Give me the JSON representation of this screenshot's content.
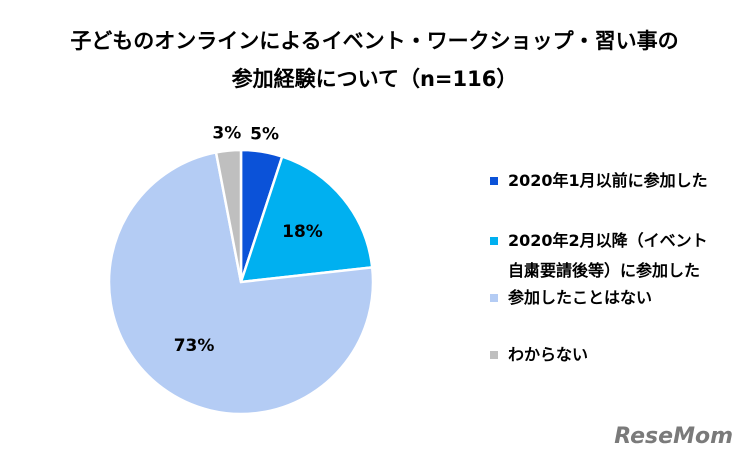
{
  "chart_data": {
    "type": "pie",
    "title": "子どものオンラインによるイベント・ワークショップ・習い事の\n参加経験について（n=116）",
    "series": [
      {
        "name": "2020年1月以前に参加した",
        "color": "#0b52d8",
        "values": [
          5
        ],
        "value_labels": [
          "5%"
        ]
      },
      {
        "name": "2020年2月以降（イベント\n自粛要請後等）に参加した",
        "color": "#00b0f0",
        "values": [
          18
        ],
        "value_labels": [
          "18%"
        ]
      },
      {
        "name": "参加したことはない",
        "color": "#b4ccf4",
        "values": [
          73
        ],
        "value_labels": [
          "73%"
        ]
      },
      {
        "name": "わからない",
        "color": "#bfbfbf",
        "values": [
          3
        ],
        "value_labels": [
          "3%"
        ]
      }
    ],
    "legend": "right",
    "watermark": "ReseMom"
  }
}
